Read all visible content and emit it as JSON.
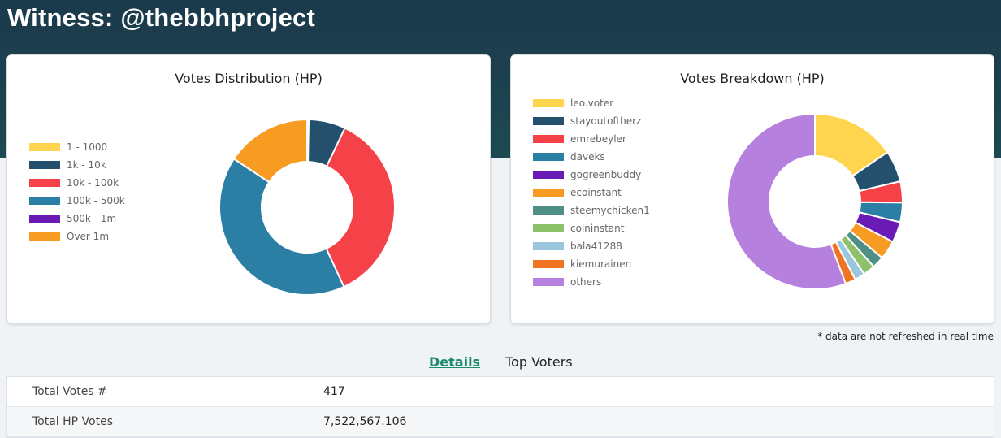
{
  "page": {
    "title": "Witness: @thebbhproject"
  },
  "note": "* data are not refreshed in real time",
  "tabs": [
    {
      "label": "Details",
      "active": true
    },
    {
      "label": "Top Voters",
      "active": false
    }
  ],
  "details": [
    {
      "label": "Total Votes #",
      "value": "417"
    },
    {
      "label": "Total HP Votes",
      "value": "7,522,567.106"
    }
  ],
  "chart_data": [
    {
      "type": "pie",
      "title": "Votes Distribution (HP)",
      "donut": true,
      "legend": "left",
      "categories": [
        "1 - 1000",
        "1k - 10k",
        "10k - 100k",
        "100k - 500k",
        "500k - 1m",
        "Over 1m"
      ],
      "values": [
        0.3,
        6.8,
        36.0,
        41.2,
        0,
        15.7
      ],
      "colors": [
        "#ffd54f",
        "#24506e",
        "#f44248",
        "#2b7fa4",
        "#6a1bb5",
        "#f89b22"
      ]
    },
    {
      "type": "pie",
      "title": "Votes Breakdown (HP)",
      "donut": true,
      "legend": "left",
      "categories": [
        "leo.voter",
        "stayoutoftherz",
        "emrebeyler",
        "daveks",
        "gogreenbuddy",
        "ecoinstant",
        "steemychicken1",
        "coininstant",
        "bala41288",
        "kiemurainen",
        "others"
      ],
      "values": [
        15.5,
        5.8,
        3.9,
        3.6,
        3.8,
        3.5,
        2.2,
        2.2,
        1.9,
        1.9,
        55.7
      ],
      "colors": [
        "#ffd54f",
        "#24506e",
        "#f44248",
        "#2b7fa4",
        "#6a1bb5",
        "#f89b22",
        "#4f8f86",
        "#8dc16a",
        "#9ac7de",
        "#ef7422",
        "#b580de"
      ]
    }
  ]
}
